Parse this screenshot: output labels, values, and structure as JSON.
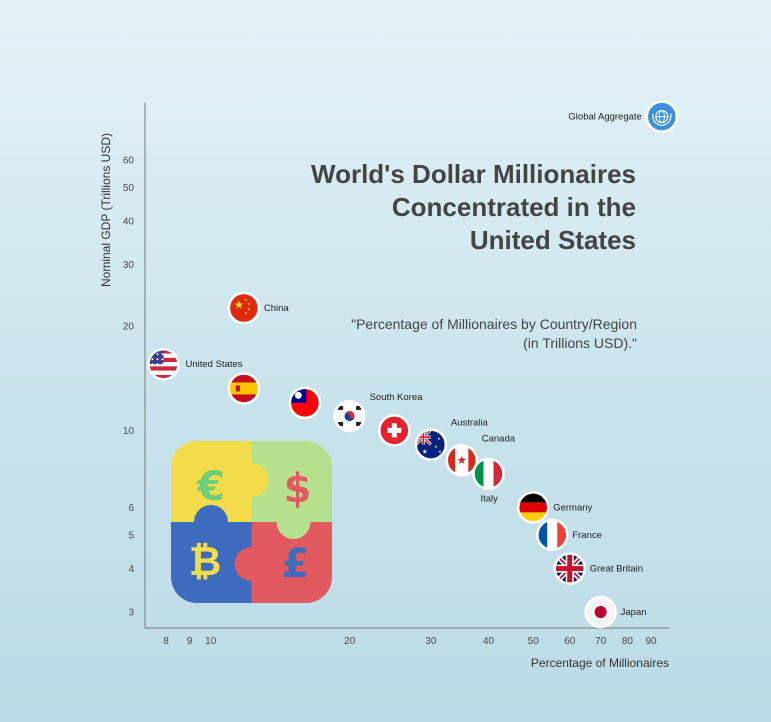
{
  "chart_data": {
    "type": "scatter",
    "title": "World's Dollar Millionaires Concentrated in the United States",
    "subtitle": "\"Percentage of Millionaires by Country/Region (in Trillions USD).\"",
    "xlabel": "Percentage of Millionaires",
    "ylabel": "Nominal GDP (Trillions USD)",
    "x_scale": "log",
    "y_scale": "log",
    "xlim": [
      7,
      110
    ],
    "ylim": [
      2.7,
      85
    ],
    "x_ticks": [
      8,
      9,
      10,
      20,
      30,
      40,
      50,
      60,
      70,
      80,
      90
    ],
    "y_ticks": [
      3,
      4,
      5,
      6,
      10,
      20,
      30,
      40,
      50,
      60
    ],
    "grid": false,
    "points": [
      {
        "label": "United States",
        "flag": "us-flag-icon",
        "x": 7.9,
        "y": 15.5
      },
      {
        "label": "China",
        "flag": "china-flag-icon",
        "x": 11.8,
        "y": 22.5
      },
      {
        "label": "",
        "flag": "spain-flag-icon",
        "x": 11.8,
        "y": 13.2
      },
      {
        "label": "",
        "flag": "taiwan-flag-icon",
        "x": 16.0,
        "y": 12.0
      },
      {
        "label": "South Korea",
        "flag": "south-korea-flag-icon",
        "x": 20.0,
        "y": 11.0
      },
      {
        "label": "",
        "flag": "switzerland-flag-icon",
        "x": 25.0,
        "y": 10.0
      },
      {
        "label": "Australia",
        "flag": "australia-flag-icon",
        "x": 30.0,
        "y": 9.1
      },
      {
        "label": "Canada",
        "flag": "canada-flag-icon",
        "x": 35.0,
        "y": 8.2
      },
      {
        "label": "Italy",
        "flag": "italy-flag-icon",
        "x": 40.0,
        "y": 7.5
      },
      {
        "label": "Germany",
        "flag": "germany-flag-icon",
        "x": 50.0,
        "y": 6.0
      },
      {
        "label": "France",
        "flag": "france-flag-icon",
        "x": 55.0,
        "y": 5.0
      },
      {
        "label": "Great Britain",
        "flag": "uk-flag-icon",
        "x": 60.0,
        "y": 4.0
      },
      {
        "label": "Japan",
        "flag": "japan-flag-icon",
        "x": 70.0,
        "y": 3.0
      },
      {
        "label": "Global Aggregate",
        "flag": "globe-icon",
        "x": 95.0,
        "y": 80.0
      }
    ],
    "decoration": {
      "icon": "currency-puzzle-icon",
      "symbols": [
        "€",
        "$",
        "₿",
        "£"
      ]
    }
  }
}
